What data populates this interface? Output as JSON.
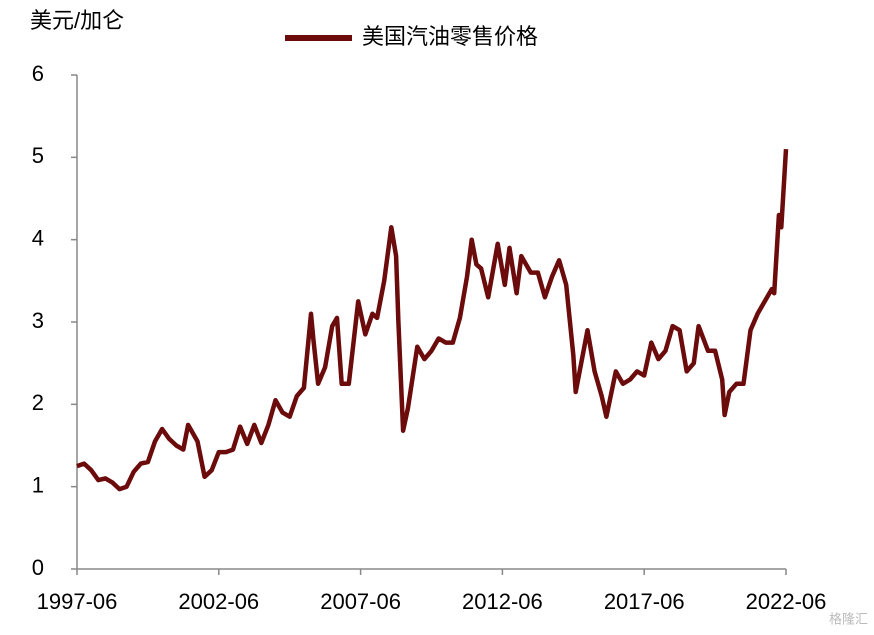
{
  "chart_data": {
    "type": "line",
    "y_axis_label": "美元/加仑",
    "watermark": "格隆汇",
    "x": [
      "1997-06",
      "1997-09",
      "1997-12",
      "1998-03",
      "1998-06",
      "1998-09",
      "1998-12",
      "1999-03",
      "1999-06",
      "1999-09",
      "1999-12",
      "2000-03",
      "2000-06",
      "2000-09",
      "2000-12",
      "2001-03",
      "2001-05",
      "2001-09",
      "2001-12",
      "2002-03",
      "2002-06",
      "2002-09",
      "2002-12",
      "2003-03",
      "2003-06",
      "2003-09",
      "2003-12",
      "2004-03",
      "2004-06",
      "2004-09",
      "2004-12",
      "2005-03",
      "2005-06",
      "2005-09",
      "2005-10",
      "2005-12",
      "2006-03",
      "2006-06",
      "2006-08",
      "2006-10",
      "2007-01",
      "2007-05",
      "2007-08",
      "2007-11",
      "2008-01",
      "2008-04",
      "2008-07",
      "2008-09",
      "2008-10",
      "2008-12",
      "2009-02",
      "2009-06",
      "2009-09",
      "2009-12",
      "2010-03",
      "2010-06",
      "2010-09",
      "2010-12",
      "2011-03",
      "2011-05",
      "2011-07",
      "2011-09",
      "2011-12",
      "2012-04",
      "2012-07",
      "2012-09",
      "2012-12",
      "2013-02",
      "2013-06",
      "2013-09",
      "2013-12",
      "2014-03",
      "2014-06",
      "2014-09",
      "2014-12",
      "2015-01",
      "2015-06",
      "2015-09",
      "2015-12",
      "2016-02",
      "2016-06",
      "2016-09",
      "2016-12",
      "2017-03",
      "2017-06",
      "2017-09",
      "2017-12",
      "2018-03",
      "2018-06",
      "2018-09",
      "2018-12",
      "2019-03",
      "2019-05",
      "2019-09",
      "2019-12",
      "2020-03",
      "2020-04",
      "2020-06",
      "2020-09",
      "2020-12",
      "2021-03",
      "2021-06",
      "2021-09",
      "2021-12",
      "2022-01",
      "2022-03",
      "2022-04",
      "2022-06"
    ],
    "series": [
      {
        "name": "美国汽油零售价格",
        "color": "#6b0b0b",
        "values": [
          1.25,
          1.28,
          1.2,
          1.08,
          1.1,
          1.05,
          0.97,
          1.0,
          1.18,
          1.28,
          1.3,
          1.55,
          1.7,
          1.58,
          1.5,
          1.45,
          1.75,
          1.55,
          1.12,
          1.2,
          1.42,
          1.42,
          1.45,
          1.73,
          1.52,
          1.75,
          1.53,
          1.75,
          2.05,
          1.9,
          1.85,
          2.1,
          2.2,
          3.1,
          2.8,
          2.25,
          2.45,
          2.95,
          3.05,
          2.25,
          2.25,
          3.25,
          2.85,
          3.1,
          3.05,
          3.5,
          4.15,
          3.8,
          3.0,
          1.68,
          1.95,
          2.7,
          2.55,
          2.65,
          2.8,
          2.75,
          2.75,
          3.05,
          3.55,
          4.0,
          3.7,
          3.65,
          3.3,
          3.95,
          3.45,
          3.9,
          3.35,
          3.8,
          3.6,
          3.6,
          3.3,
          3.55,
          3.75,
          3.45,
          2.6,
          2.15,
          2.9,
          2.4,
          2.1,
          1.85,
          2.4,
          2.25,
          2.3,
          2.4,
          2.35,
          2.75,
          2.55,
          2.65,
          2.95,
          2.9,
          2.4,
          2.5,
          2.95,
          2.65,
          2.65,
          2.3,
          1.87,
          2.15,
          2.25,
          2.25,
          2.9,
          3.1,
          3.25,
          3.4,
          3.35,
          4.3,
          4.15,
          5.1
        ]
      }
    ],
    "xlim": [
      "1997-06",
      "2022-06"
    ],
    "xticks": [
      "1997-06",
      "2002-06",
      "2007-06",
      "2012-06",
      "2017-06",
      "2022-06"
    ],
    "ylim": [
      0,
      6
    ],
    "yticks": [
      0,
      1,
      2,
      3,
      4,
      5,
      6
    ]
  }
}
